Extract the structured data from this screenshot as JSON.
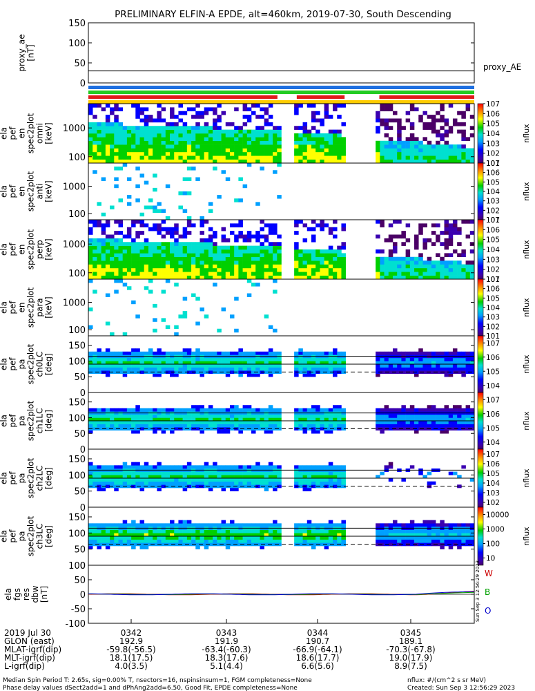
{
  "title": "PRELIMINARY ELFIN-A EPDE, alt=460km, 2019-07-30, South Descending",
  "chart_data": [
    {
      "type": "line",
      "panel": "proxy_ae",
      "ylabel": [
        "proxy_ae",
        "[nT]"
      ],
      "right_label": "proxy_AE",
      "ylim": [
        0,
        150
      ],
      "yticks": [
        0,
        50,
        100,
        150
      ],
      "hlines": [
        30
      ],
      "series": [
        {
          "values": []
        }
      ]
    },
    {
      "type": "heatmap",
      "panel": "status_bars",
      "rows": [
        {
          "color": "#1e6fe0",
          "segments": [
            [
              0,
              1
            ]
          ]
        },
        {
          "color": "#22cc22",
          "segments": [
            [
              0,
              1
            ]
          ]
        },
        {
          "color": "#e01b1b",
          "segments": [
            [
              0,
              0.49
            ],
            [
              0.54,
              0.664
            ],
            [
              0.754,
              1
            ]
          ]
        },
        {
          "color": "#ffcc00",
          "segments": [
            [
              0,
              1
            ]
          ]
        }
      ]
    },
    {
      "type": "heatmap",
      "panel": "spec2plot_omni",
      "ylabel": [
        "ela",
        "pef",
        "en",
        "spec2plot",
        "omni",
        "[keV]"
      ],
      "yscale": "log",
      "ylim": [
        60,
        7000
      ],
      "yticks": [
        100,
        1000
      ],
      "zlabel": "nflux",
      "zscale": "log",
      "zlim": [
        10,
        10000000
      ],
      "zticks": [
        "10^1",
        "10^2",
        "10^3",
        "10^4",
        "10^5",
        "10^6",
        "10^7"
      ]
    },
    {
      "type": "heatmap",
      "panel": "spec2plot_anti",
      "ylabel": [
        "ela",
        "pef",
        "en",
        "spec2plot",
        "anti",
        "[keV]"
      ],
      "yscale": "log",
      "ylim": [
        60,
        7000
      ],
      "yticks": [
        100,
        1000
      ],
      "zlabel": "nflux",
      "zscale": "log",
      "zlim": [
        10,
        10000000
      ],
      "zticks": [
        "10^1",
        "10^2",
        "10^3",
        "10^4",
        "10^5",
        "10^6",
        "10^7"
      ]
    },
    {
      "type": "heatmap",
      "panel": "spec2plot_perp",
      "ylabel": [
        "ela",
        "pef",
        "en",
        "spec2plot",
        "perp",
        "[keV]"
      ],
      "yscale": "log",
      "ylim": [
        60,
        7000
      ],
      "yticks": [
        100,
        1000
      ],
      "zlabel": "nflux",
      "zscale": "log",
      "zlim": [
        10,
        10000000
      ],
      "zticks": [
        "10^1",
        "10^2",
        "10^3",
        "10^4",
        "10^5",
        "10^6",
        "10^7"
      ]
    },
    {
      "type": "heatmap",
      "panel": "spec2plot_para",
      "ylabel": [
        "ela",
        "pef",
        "en",
        "spec2plot",
        "para",
        "[keV]"
      ],
      "yscale": "log",
      "ylim": [
        60,
        7000
      ],
      "yticks": [
        100,
        1000
      ],
      "zlabel": "nflux",
      "zscale": "log",
      "zlim": [
        10,
        10000000
      ],
      "zticks": [
        "10^1",
        "10^2",
        "10^3",
        "10^4",
        "10^5",
        "10^6",
        "10^7"
      ]
    },
    {
      "type": "heatmap",
      "panel": "spec2plot_ch0LC",
      "ylabel": [
        "ela",
        "pef",
        "pa",
        "spec2plot",
        "ch0LC",
        "[deg]"
      ],
      "ylim": [
        0,
        180
      ],
      "yticks": [
        0,
        50,
        100,
        150
      ],
      "zlabel": "nflux",
      "zscale": "log",
      "zlim": [
        1000,
        10000000
      ],
      "zticks": [
        "10^4",
        "10^5",
        "10^6",
        "10^7"
      ]
    },
    {
      "type": "heatmap",
      "panel": "spec2plot_ch1LC",
      "ylabel": [
        "ela",
        "pef",
        "pa",
        "spec2plot",
        "ch1LC",
        "[deg]"
      ],
      "ylim": [
        0,
        180
      ],
      "yticks": [
        0,
        50,
        100,
        150
      ],
      "zlabel": "nflux",
      "zscale": "log",
      "zlim": [
        1000,
        10000000
      ],
      "zticks": [
        "10^4",
        "10^5",
        "10^6",
        "10^7"
      ]
    },
    {
      "type": "heatmap",
      "panel": "spec2plot_ch2LC",
      "ylabel": [
        "ela",
        "pef",
        "pa",
        "spec2plot",
        "ch2LC",
        "[deg]"
      ],
      "ylim": [
        0,
        180
      ],
      "yticks": [
        0,
        50,
        100,
        150
      ],
      "zlabel": "nflux",
      "zscale": "log",
      "zlim": [
        10,
        10000000
      ],
      "zticks": [
        "10^2",
        "10^3",
        "10^4",
        "10^5",
        "10^6",
        "10^7"
      ]
    },
    {
      "type": "heatmap",
      "panel": "spec2plot_ch3LC",
      "ylabel": [
        "ela",
        "pef",
        "pa",
        "spec2plot",
        "ch3LC",
        "[deg]"
      ],
      "ylim": [
        0,
        180
      ],
      "yticks": [
        0,
        50,
        100,
        150
      ],
      "zlabel": "nflux",
      "zscale": "log",
      "zlim": [
        10,
        10000
      ],
      "zticks": [
        "10",
        "100",
        "1000",
        "10000"
      ]
    },
    {
      "type": "line",
      "panel": "fgs_res",
      "ylabel": [
        "ela",
        "fgs",
        "res",
        "dbw",
        "[nT]"
      ],
      "ylim": [
        -100,
        100
      ],
      "yticks": [
        -100,
        -50,
        0,
        50,
        100
      ],
      "series": [
        {
          "name": "W",
          "color": "#cc0000"
        },
        {
          "name": "B",
          "color": "#00a000"
        },
        {
          "name": "O",
          "color": "#0000cc"
        }
      ]
    }
  ],
  "x_axis": {
    "ticks": [
      "0342",
      "0343",
      "0344",
      "0345"
    ],
    "rows": [
      {
        "label": "2019 Jul 30",
        "values": [
          "0342",
          "0343",
          "0344",
          "0345"
        ]
      },
      {
        "label": "GLON (east)",
        "values": [
          "192.9",
          "191.9",
          "190.7",
          "189.1"
        ]
      },
      {
        "label": "MLAT-igrf(dip)",
        "values": [
          "-59.8(-56.5)",
          "-63.4(-60.3)",
          "-66.9(-64.1)",
          "-70.3(-67.8)"
        ]
      },
      {
        "label": "MLT-igrf(dip)",
        "values": [
          "18.1(17.5)",
          "18.3(17.6)",
          "18.6(17.7)",
          "19.0(17.9)"
        ]
      },
      {
        "label": "L-igrf(dip)",
        "values": [
          "4.0(3.5)",
          "5.1(4.4)",
          "6.6(5.6)",
          "8.9(7.5)"
        ]
      }
    ]
  },
  "footer": {
    "left1": "Median Spin Period T: 2.65s, sig=0.00% T, nsectors=16, nspinsinsum=1, FGM completeness=None",
    "left2": "Phase delay values dSect2add=1 and dPhAng2add=6.50, Good Fit, EPDE completeness=None",
    "right1": "nflux: #/(cm^2 s sr MeV)",
    "right2": "Created: Sun Sep  3 12:56:29 2023",
    "vertical": "Sun Sep 3 12:56:29 2023"
  },
  "colors": {
    "accent": "#000000"
  }
}
